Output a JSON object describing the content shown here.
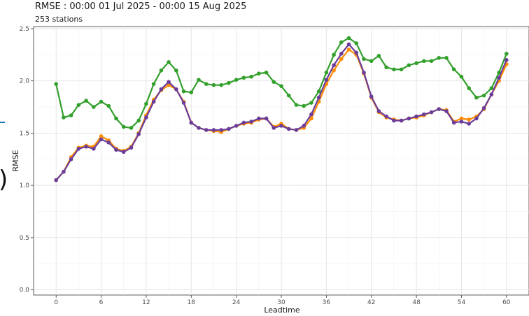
{
  "header": {
    "title": "RMSE : 00:00 01 Jul 2025 - 00:00 15 Aug 2025",
    "subtitle": "253 stations"
  },
  "decor": {
    "edge_mark_color": "#1f77b4",
    "edge_paren": ")"
  },
  "chart_data": {
    "type": "line",
    "xlabel": "Leadtime",
    "ylabel": "RMSE",
    "xlim": [
      -3,
      63
    ],
    "ylim": [
      -0.05,
      2.52
    ],
    "x_ticks": [
      0,
      6,
      12,
      18,
      24,
      30,
      36,
      42,
      48,
      54,
      60
    ],
    "y_ticks": [
      0.0,
      0.5,
      1.0,
      1.5,
      2.0,
      2.5
    ],
    "grid": true,
    "legend": "none",
    "x": [
      0,
      1,
      2,
      3,
      4,
      5,
      6,
      7,
      8,
      9,
      10,
      11,
      12,
      13,
      14,
      15,
      16,
      17,
      18,
      19,
      20,
      21,
      22,
      23,
      24,
      25,
      26,
      27,
      28,
      29,
      30,
      31,
      32,
      33,
      34,
      35,
      36,
      37,
      38,
      39,
      40,
      41,
      42,
      43,
      44,
      45,
      46,
      47,
      48,
      49,
      50,
      51,
      52,
      53,
      54,
      55,
      56,
      57,
      58,
      59,
      60
    ],
    "series": [
      {
        "color": "#33a02c",
        "values": [
          1.97,
          1.65,
          1.67,
          1.77,
          1.81,
          1.75,
          1.8,
          1.76,
          1.64,
          1.56,
          1.55,
          1.62,
          1.78,
          1.97,
          2.1,
          2.18,
          2.1,
          1.9,
          1.89,
          2.01,
          1.97,
          1.96,
          1.96,
          1.98,
          2.01,
          2.03,
          2.04,
          2.07,
          2.08,
          1.99,
          1.95,
          1.86,
          1.77,
          1.76,
          1.79,
          1.9,
          2.08,
          2.25,
          2.37,
          2.41,
          2.36,
          2.21,
          2.19,
          2.24,
          2.13,
          2.11,
          2.11,
          2.15,
          2.17,
          2.19,
          2.19,
          2.22,
          2.22,
          2.11,
          2.04,
          1.93,
          1.84,
          1.86,
          1.93,
          2.08,
          2.26
        ]
      },
      {
        "color": "#ff8c00",
        "values": [
          1.05,
          1.13,
          1.27,
          1.36,
          1.38,
          1.37,
          1.47,
          1.43,
          1.35,
          1.33,
          1.37,
          1.5,
          1.67,
          1.82,
          1.91,
          1.96,
          1.92,
          1.8,
          1.6,
          1.55,
          1.53,
          1.52,
          1.51,
          1.54,
          1.57,
          1.59,
          1.6,
          1.63,
          1.64,
          1.56,
          1.59,
          1.54,
          1.53,
          1.55,
          1.64,
          1.8,
          1.97,
          2.1,
          2.21,
          2.3,
          2.25,
          2.07,
          1.84,
          1.7,
          1.65,
          1.63,
          1.62,
          1.64,
          1.65,
          1.67,
          1.7,
          1.73,
          1.72,
          1.61,
          1.64,
          1.63,
          1.66,
          1.73,
          1.87,
          2.0,
          2.16
        ]
      },
      {
        "color": "#6a3d9a",
        "values": [
          1.05,
          1.13,
          1.25,
          1.35,
          1.37,
          1.35,
          1.44,
          1.41,
          1.34,
          1.32,
          1.36,
          1.49,
          1.65,
          1.8,
          1.92,
          1.99,
          1.92,
          1.79,
          1.6,
          1.55,
          1.53,
          1.53,
          1.53,
          1.54,
          1.57,
          1.6,
          1.61,
          1.64,
          1.64,
          1.55,
          1.57,
          1.54,
          1.53,
          1.57,
          1.68,
          1.84,
          2.01,
          2.15,
          2.26,
          2.35,
          2.27,
          2.08,
          1.85,
          1.71,
          1.66,
          1.62,
          1.62,
          1.64,
          1.66,
          1.68,
          1.7,
          1.73,
          1.71,
          1.6,
          1.61,
          1.59,
          1.64,
          1.74,
          1.87,
          2.03,
          2.2
        ]
      }
    ]
  }
}
